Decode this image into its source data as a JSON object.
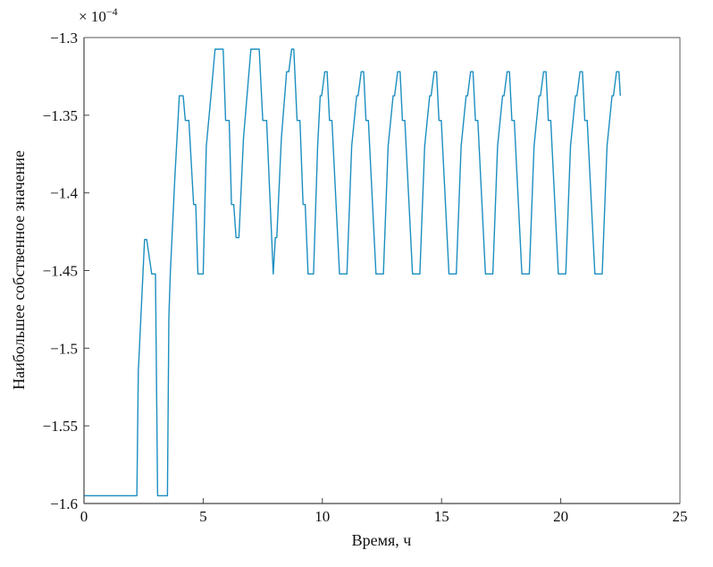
{
  "chart_data": {
    "type": "line",
    "title": "",
    "xlabel": "Время, ч",
    "ylabel": "Наибольшее собственное значение",
    "y_multiplier_label": "× 10",
    "y_multiplier_exponent": "−4",
    "xlim": [
      0,
      25
    ],
    "ylim": [
      -1.6,
      -1.3
    ],
    "xticks": [
      "0",
      "5",
      "10",
      "15",
      "20",
      "25"
    ],
    "yticks": [
      "−1.3",
      "−1.35",
      "−1.4",
      "−1.45",
      "−1.5",
      "−1.55",
      "−1.6"
    ],
    "grid": false,
    "line_color": "#1c8fc0",
    "series": [
      {
        "x": [
          0,
          2.22,
          2.28,
          2.54,
          2.63,
          2.84,
          3.0,
          3.09,
          3.5,
          3.56,
          3.62,
          3.81,
          4.0,
          4.16,
          4.25,
          4.4,
          4.6,
          4.69,
          4.78,
          5.0,
          5.13,
          5.31,
          5.5,
          5.84,
          5.94,
          6.09,
          6.19,
          6.28,
          6.38,
          6.5,
          6.69,
          7.0,
          7.35,
          7.5,
          7.66,
          7.94,
          8.03,
          8.09,
          8.28,
          8.5,
          8.59,
          8.71,
          8.8,
          8.94,
          9.06,
          9.19,
          9.28,
          9.4,
          9.63,
          9.8,
          9.91,
          9.97,
          10.1,
          10.2,
          10.3,
          10.4,
          10.72,
          11.03,
          11.23,
          11.44,
          11.5,
          11.63,
          11.73,
          11.83,
          11.93,
          12.25,
          12.56,
          12.76,
          12.97,
          13.03,
          13.16,
          13.26,
          13.36,
          13.46,
          13.78,
          14.09,
          14.29,
          14.5,
          14.56,
          14.69,
          14.79,
          14.89,
          14.99,
          15.31,
          15.62,
          15.82,
          16.03,
          16.09,
          16.22,
          16.32,
          16.42,
          16.52,
          16.84,
          17.15,
          17.35,
          17.56,
          17.62,
          17.75,
          17.85,
          17.95,
          18.05,
          18.37,
          18.68,
          18.88,
          19.09,
          19.15,
          19.28,
          19.38,
          19.48,
          19.58,
          19.9,
          20.21,
          20.41,
          20.62,
          20.68,
          20.81,
          20.91,
          21.01,
          21.11,
          21.43,
          21.74,
          21.94,
          22.15,
          22.21,
          22.34,
          22.44,
          22.5
        ],
        "y": [
          -1.595,
          -1.595,
          -1.515,
          -1.43,
          -1.43,
          -1.4522,
          -1.4522,
          -1.595,
          -1.595,
          -1.48,
          -1.4522,
          -1.39,
          -1.3375,
          -1.3375,
          -1.3534,
          -1.3534,
          -1.4075,
          -1.4075,
          -1.4522,
          -1.4522,
          -1.37,
          -1.34,
          -1.3075,
          -1.3075,
          -1.3534,
          -1.3534,
          -1.4075,
          -1.4075,
          -1.4288,
          -1.4288,
          -1.365,
          -1.3075,
          -1.3075,
          -1.3534,
          -1.3534,
          -1.4522,
          -1.4288,
          -1.4288,
          -1.365,
          -1.322,
          -1.322,
          -1.3075,
          -1.3075,
          -1.3534,
          -1.3534,
          -1.4075,
          -1.4075,
          -1.4522,
          -1.4522,
          -1.37,
          -1.3375,
          -1.3375,
          -1.322,
          -1.322,
          -1.3534,
          -1.3534,
          -1.4522,
          -1.4522,
          -1.37,
          -1.3375,
          -1.3375,
          -1.322,
          -1.322,
          -1.3534,
          -1.3534,
          -1.4522,
          -1.4522,
          -1.37,
          -1.3375,
          -1.3375,
          -1.322,
          -1.322,
          -1.3534,
          -1.3534,
          -1.4522,
          -1.4522,
          -1.37,
          -1.3375,
          -1.3375,
          -1.322,
          -1.322,
          -1.3534,
          -1.3534,
          -1.4522,
          -1.4522,
          -1.37,
          -1.3375,
          -1.3375,
          -1.322,
          -1.322,
          -1.3534,
          -1.3534,
          -1.4522,
          -1.4522,
          -1.37,
          -1.3375,
          -1.3375,
          -1.322,
          -1.322,
          -1.3534,
          -1.3534,
          -1.4522,
          -1.4522,
          -1.37,
          -1.3375,
          -1.3375,
          -1.322,
          -1.322,
          -1.3534,
          -1.3534,
          -1.4522,
          -1.4522,
          -1.37,
          -1.3375,
          -1.3375,
          -1.322,
          -1.322,
          -1.3534,
          -1.3534,
          -1.4522,
          -1.4522,
          -1.37,
          -1.3375,
          -1.3375,
          -1.322,
          -1.322,
          -1.3375
        ]
      }
    ]
  }
}
